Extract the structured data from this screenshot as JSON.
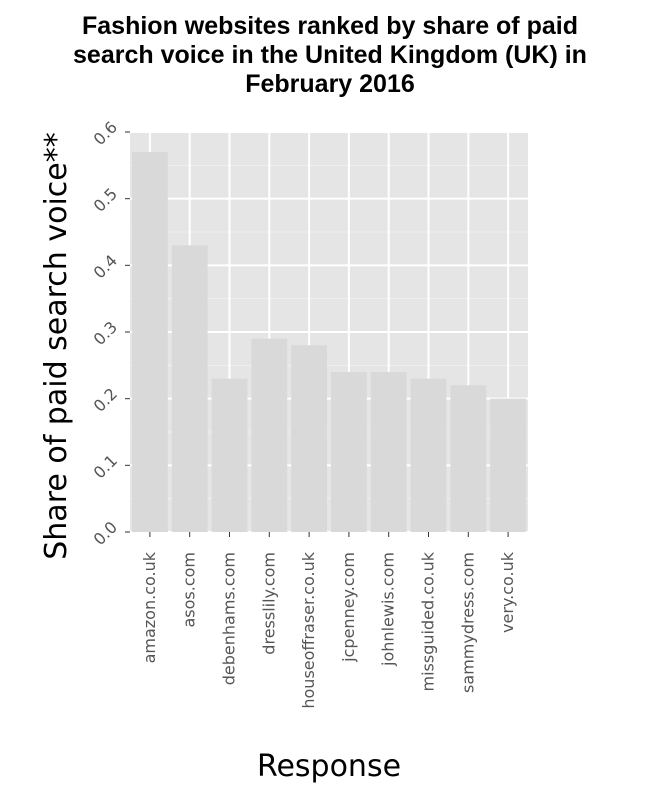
{
  "chart_data": {
    "type": "bar",
    "title_lines": [
      "Fashion websites ranked by share of paid",
      "search voice in the United Kingdom (UK) in",
      "February 2016"
    ],
    "xlabel": "Response",
    "ylabel": "Share of paid search voice**",
    "categories": [
      "amazon.co.uk",
      "asos.com",
      "debenhams.com",
      "dresslily.com",
      "houseoffraser.co.uk",
      "jcpenney.com",
      "johnlewis.com",
      "missguided.co.uk",
      "sammydress.com",
      "very.co.uk"
    ],
    "values": [
      0.57,
      0.43,
      0.23,
      0.29,
      0.28,
      0.24,
      0.24,
      0.23,
      0.22,
      0.2
    ],
    "ylim": [
      0,
      0.6
    ],
    "yticks": [
      "0.0",
      "0.1",
      "0.2",
      "0.3",
      "0.4",
      "0.5",
      "0.6"
    ],
    "grid": true,
    "colors": {
      "panel_background": "#e5e5e5",
      "grid_major": "#ffffff",
      "grid_minor": "#f0f0f0",
      "bar_fill": "#d9d9d9",
      "tick_text": "#555555"
    }
  }
}
